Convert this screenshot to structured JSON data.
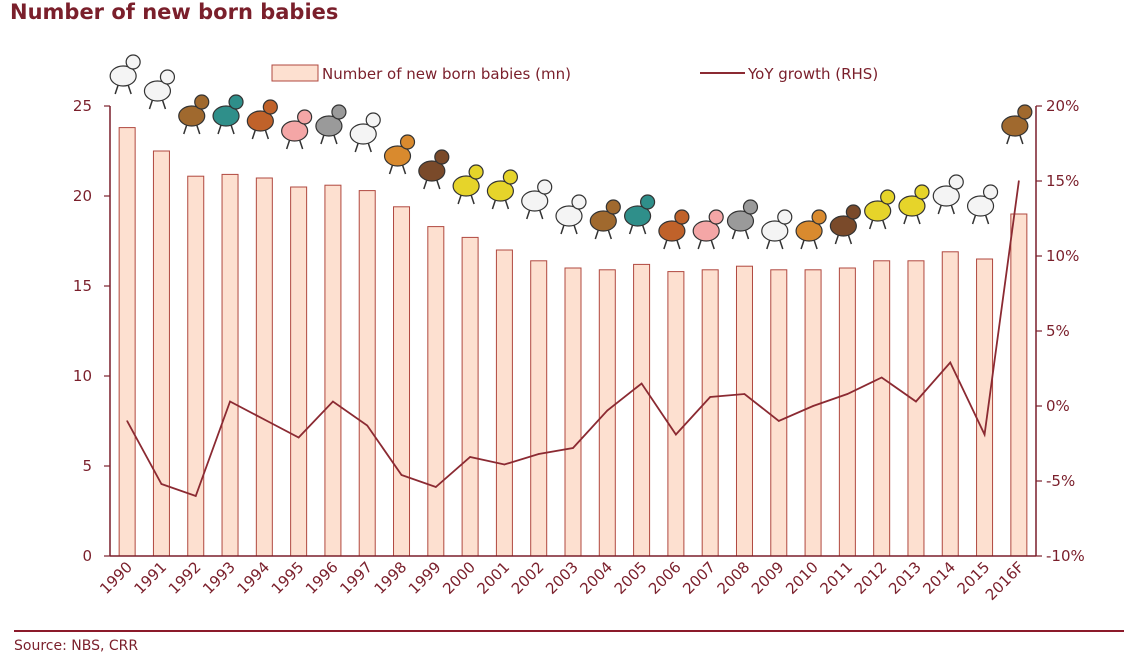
{
  "title": "Number of new born babies",
  "source": "Source: NBS, CRR",
  "colors": {
    "bar_fill": "#fde0d0",
    "bar_stroke": "#b0483f",
    "line": "#8b2a32",
    "axis": "#7a1f2b"
  },
  "chart_data": {
    "type": "bar",
    "title": "Number of new born babies",
    "categories": [
      "1990",
      "1991",
      "1992",
      "1993",
      "1994",
      "1995",
      "1996",
      "1997",
      "1998",
      "1999",
      "2000",
      "2001",
      "2002",
      "2003",
      "2004",
      "2005",
      "2006",
      "2007",
      "2008",
      "2009",
      "2010",
      "2011",
      "2012",
      "2013",
      "2014",
      "2015",
      "2016F"
    ],
    "series": [
      {
        "name": "Number of new born babies (mn)",
        "type": "bar",
        "axis": "left",
        "values": [
          23.8,
          22.5,
          21.1,
          21.2,
          21.0,
          20.5,
          20.6,
          20.3,
          19.4,
          18.3,
          17.7,
          17.0,
          16.4,
          16.0,
          15.9,
          16.2,
          15.8,
          15.9,
          16.1,
          15.9,
          15.9,
          16.0,
          16.4,
          16.4,
          16.9,
          16.5,
          19.0
        ]
      },
      {
        "name": "YoY growth (RHS)",
        "type": "line",
        "axis": "right",
        "values": [
          -1.0,
          -5.2,
          -6.0,
          0.3,
          -0.9,
          -2.1,
          0.3,
          -1.3,
          -4.6,
          -5.4,
          -3.4,
          -3.9,
          -3.2,
          -2.8,
          -0.3,
          1.5,
          -1.9,
          0.6,
          0.8,
          -1.0,
          0.0,
          0.8,
          1.9,
          0.3,
          2.9,
          -1.9,
          15.0
        ]
      }
    ],
    "ylim_left": [
      0,
      25
    ],
    "yticks_left": [
      "0",
      "5",
      "10",
      "15",
      "20",
      "25"
    ],
    "ylim_right": [
      -10,
      20
    ],
    "yticks_right": [
      "-10%",
      "-5%",
      "0%",
      "5%",
      "10%",
      "15%",
      "20%"
    ],
    "legend_placement": "top-center",
    "grid": false
  },
  "decoration": {
    "zodiac_icons": [
      "horse-icon",
      "goat-icon",
      "monkey-icon",
      "rooster-icon",
      "dog-icon",
      "pig-icon",
      "rat-icon",
      "ox-icon",
      "tiger-icon",
      "rabbit-icon",
      "dragon-icon",
      "snake-icon",
      "horse-icon",
      "goat-icon",
      "monkey-icon",
      "rooster-icon",
      "dog-icon",
      "pig-icon",
      "rat-icon",
      "ox-icon",
      "tiger-icon",
      "rabbit-icon",
      "dragon-icon",
      "snake-icon",
      "horse-icon",
      "goat-icon",
      "monkey-icon"
    ]
  }
}
